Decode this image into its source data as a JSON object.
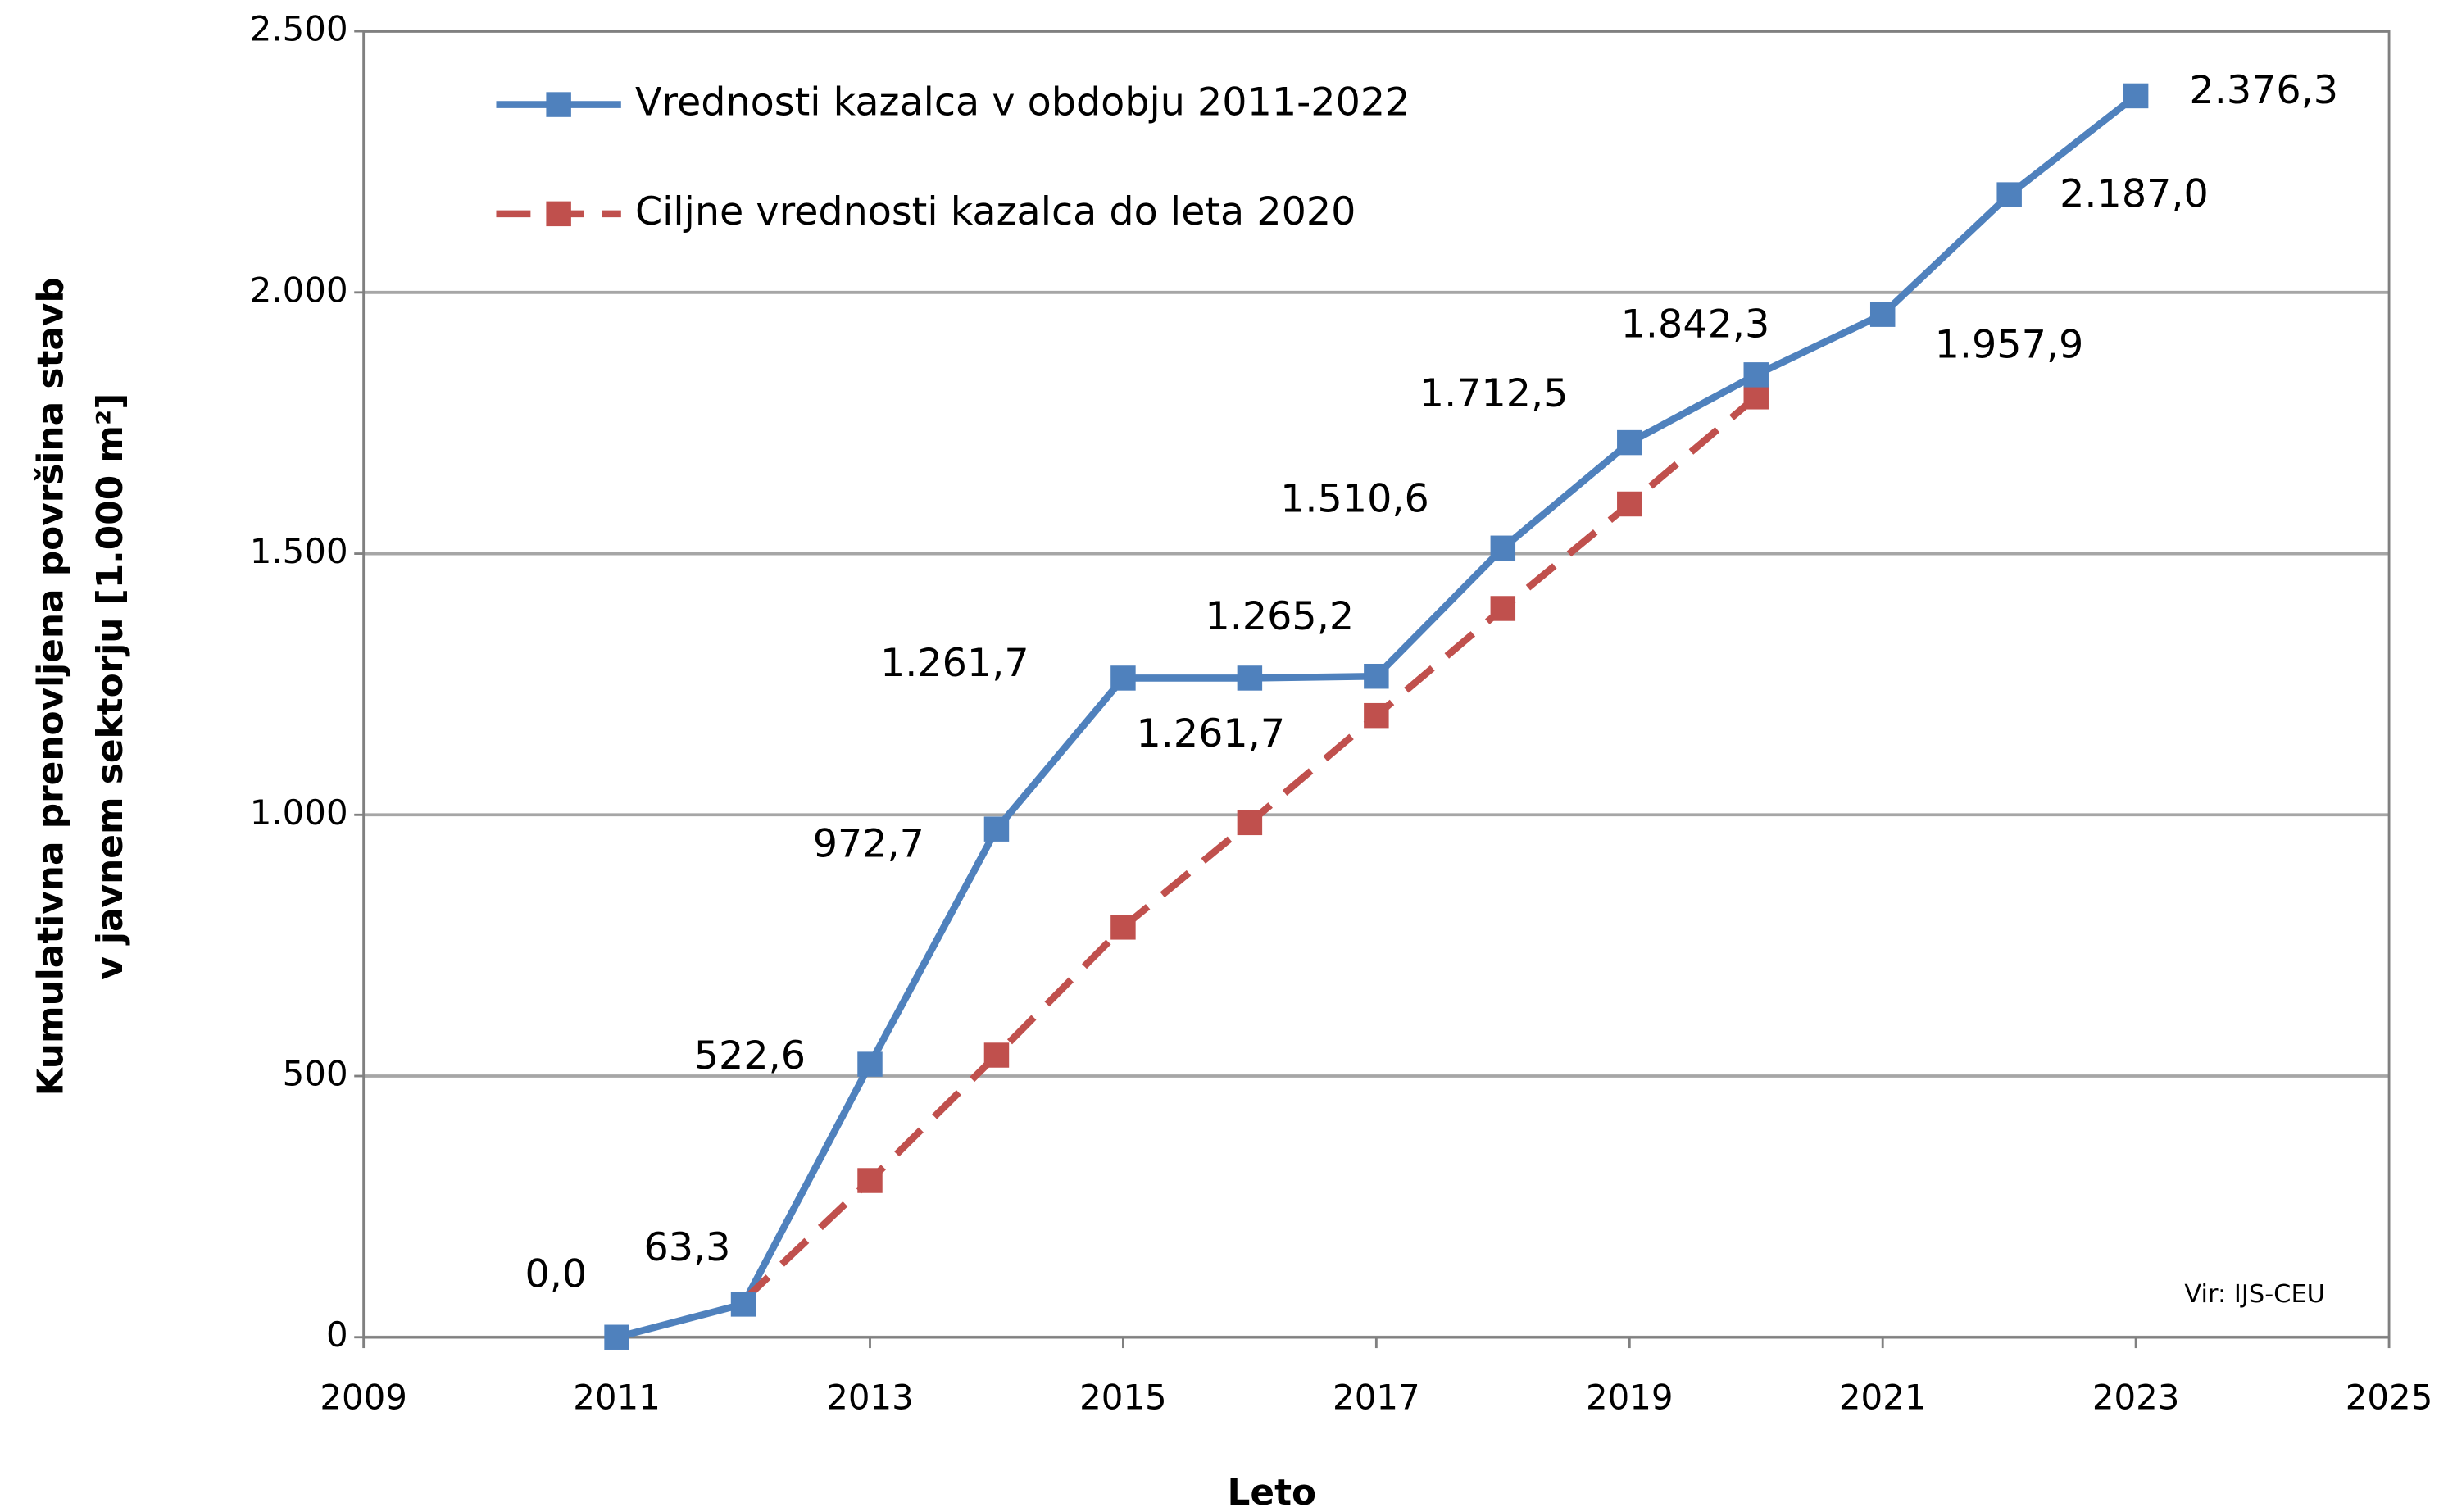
{
  "chart_data": {
    "type": "line",
    "x_label": "Leto",
    "y_label": [
      "Kumulativna prenovljena površina stavb",
      "v javnem sektorju [1.000 m²]"
    ],
    "source": "Vir: IJS-CEU",
    "x": [
      2011,
      2012,
      2013,
      2014,
      2015,
      2016,
      2017,
      2018,
      2019,
      2020,
      2021,
      2022,
      2023
    ],
    "series": [
      {
        "name": "Vrednosti kazalca v obdobju 2011-2022",
        "color": "#4f81bd",
        "dashed": false,
        "values": [
          0.0,
          63.3,
          522.6,
          972.7,
          1261.7,
          1261.7,
          1265.2,
          1510.6,
          1712.5,
          1842.3,
          1957.9,
          2187.0,
          2376.3
        ],
        "value_labels": [
          "0,0",
          "63,3",
          "522,6",
          "972,7",
          "1.261,7",
          "1.261,7",
          "1.265,2",
          "1.510,6",
          "1.712,5",
          "1.842,3",
          "1.957,9",
          "2.187,0",
          "2.376,3"
        ]
      },
      {
        "name": "Ciljne vrednosti kazalca do leta 2020",
        "color": "#c0504d",
        "dashed": true,
        "values": [
          null,
          70,
          300,
          540,
          785,
          985,
          1190,
          1395,
          1595,
          1800,
          null,
          null,
          null
        ]
      }
    ],
    "xlim": [
      2009,
      2025
    ],
    "xticks": [
      2009,
      2011,
      2013,
      2015,
      2017,
      2019,
      2021,
      2023,
      2025
    ],
    "ylim": [
      0,
      2500
    ],
    "yticks": [
      0,
      {
        "value": 500,
        "label": "500"
      },
      {
        "value": 1000,
        "label": "1.000"
      },
      {
        "value": 1500,
        "label": "1.500"
      },
      {
        "value": 2000,
        "label": "2.000"
      },
      {
        "value": 2500,
        "label": "2.500"
      }
    ],
    "grid": true
  }
}
